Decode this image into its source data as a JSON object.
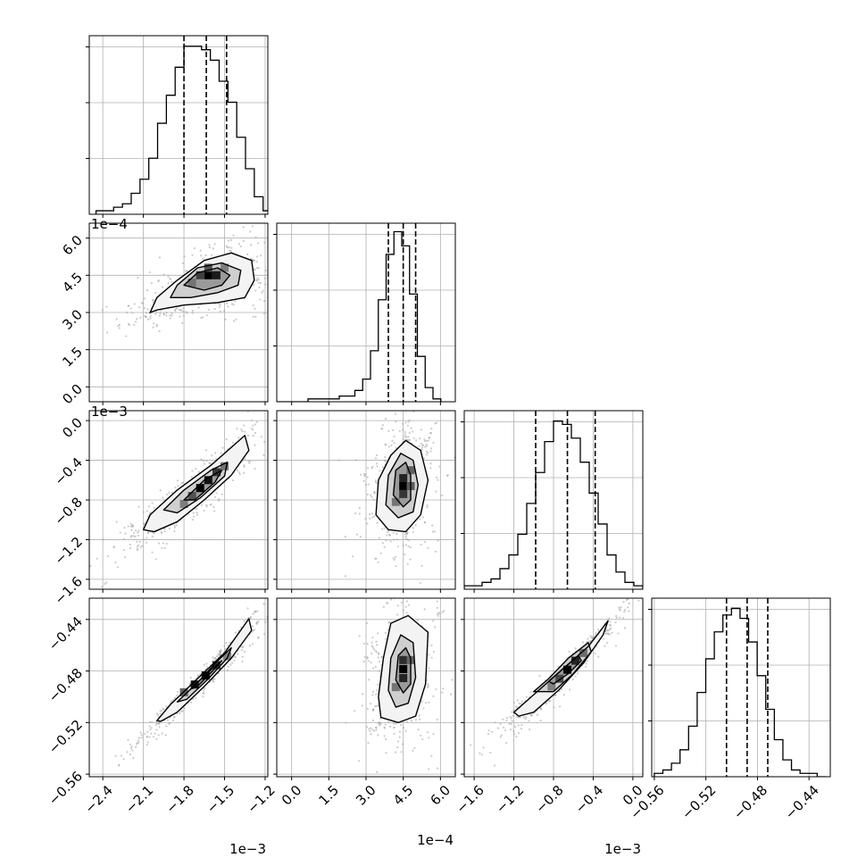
{
  "figure": {
    "type": "corner-plot",
    "background": "#ffffff",
    "ink": "#000000",
    "grid_color": "#b0b0b0",
    "point_color": "#a0a0a0"
  },
  "chart_data": {
    "type": "corner",
    "n_params": 4,
    "params": [
      {
        "range": [
          -2.5,
          -1.18
        ],
        "ticks": [
          -2.4,
          -2.1,
          -1.8,
          -1.5,
          -1.2
        ],
        "tick_labels": [
          "−2.4",
          "−2.1",
          "−1.8",
          "−1.5",
          "−1.2"
        ],
        "offset_label": "1e−3"
      },
      {
        "range": [
          -6e-05,
          0.00066
        ],
        "ticks": [
          0.0,
          0.00015,
          0.0003,
          0.00045,
          0.0006
        ],
        "tick_labels": [
          "0.0",
          "1.5",
          "3.0",
          "4.5",
          "6.0"
        ],
        "offset_label": "1e−4"
      },
      {
        "range": [
          -1.7,
          0.1
        ],
        "ticks": [
          -1.6,
          -1.2,
          -0.8,
          -0.4,
          0.0
        ],
        "tick_labels": [
          "−1.6",
          "−1.2",
          "−0.8",
          "−0.4",
          "0.0"
        ],
        "offset_label": "1e−3"
      },
      {
        "range": [
          -0.562,
          -0.4235
        ],
        "ticks": [
          -0.56,
          -0.52,
          -0.48,
          -0.44
        ],
        "tick_labels": [
          "−0.56",
          "−0.52",
          "−0.48",
          "−0.44"
        ],
        "offset_label": ""
      }
    ],
    "quantiles": [
      [
        -1.8,
        -1.635,
        -1.485
      ],
      [
        0.00039,
        0.00045,
        0.0005
      ],
      [
        -0.98,
        -0.66,
        -0.38
      ],
      [
        -0.504,
        -0.488,
        -0.472
      ]
    ],
    "histograms": [
      {
        "bin_start": -2.45,
        "bin_width": 0.065,
        "counts": [
          1,
          1,
          2,
          3,
          6,
          10,
          16,
          26,
          34,
          42,
          48,
          48,
          47,
          44,
          38,
          32,
          22,
          13,
          5,
          1
        ]
      },
      {
        "bin_start": -6e-05,
        "bin_width": 3.15e-05,
        "counts": [
          0,
          0,
          0,
          0,
          1,
          1,
          1,
          1,
          2,
          2,
          4,
          8,
          18,
          36,
          52,
          60,
          55,
          38,
          16,
          5,
          1
        ]
      },
      {
        "bin_start": -1.7,
        "bin_width": 0.09,
        "counts": [
          1,
          1,
          2,
          3,
          6,
          10,
          16,
          25,
          34,
          43,
          49,
          48,
          44,
          37,
          28,
          19,
          10,
          5,
          2,
          1
        ]
      },
      {
        "bin_start": -0.56,
        "bin_width": 0.00665,
        "counts": [
          1,
          2,
          4,
          8,
          15,
          25,
          35,
          43,
          48,
          50,
          47,
          40,
          30,
          20,
          11,
          5,
          2,
          1,
          1,
          0
        ]
      }
    ],
    "ylim": [
      [
        0,
        51
      ],
      [
        0,
        63
      ],
      [
        0,
        52
      ],
      [
        0,
        53
      ]
    ],
    "scatter_panels": [
      {
        "row": 1,
        "col": 0,
        "contours": [
          [
            [
              -2.05,
              0.0003
            ],
            [
              -2.0,
              0.00036
            ],
            [
              -1.85,
              0.00043
            ],
            [
              -1.65,
              0.00051
            ],
            [
              -1.45,
              0.00054
            ],
            [
              -1.3,
              0.00051
            ],
            [
              -1.28,
              0.00043
            ],
            [
              -1.35,
              0.00036
            ],
            [
              -1.55,
              0.00034
            ],
            [
              -1.8,
              0.00033
            ],
            [
              -2.0,
              0.00031
            ]
          ],
          [
            [
              -1.9,
              0.00036
            ],
            [
              -1.85,
              0.00041
            ],
            [
              -1.7,
              0.00048
            ],
            [
              -1.52,
              0.0005
            ],
            [
              -1.38,
              0.00047
            ],
            [
              -1.4,
              0.00041
            ],
            [
              -1.55,
              0.00038
            ],
            [
              -1.75,
              0.00036
            ]
          ],
          [
            [
              -1.8,
              0.00041
            ],
            [
              -1.7,
              0.00046
            ],
            [
              -1.55,
              0.00048
            ],
            [
              -1.46,
              0.00045
            ],
            [
              -1.52,
              0.00041
            ],
            [
              -1.65,
              0.00039
            ]
          ]
        ],
        "density_cells": [
          {
            "x": -1.62,
            "y": 0.00045,
            "level": 1.0
          },
          {
            "x": -1.56,
            "y": 0.00045,
            "level": 0.85
          },
          {
            "x": -1.68,
            "y": 0.00045,
            "level": 0.65
          },
          {
            "x": -1.62,
            "y": 0.00048,
            "level": 0.55
          },
          {
            "x": -1.74,
            "y": 0.00042,
            "level": 0.35
          },
          {
            "x": -1.5,
            "y": 0.00048,
            "level": 0.3
          }
        ]
      },
      {
        "row": 2,
        "col": 0,
        "contours": [
          [
            [
              -2.1,
              -1.1
            ],
            [
              -2.05,
              -0.95
            ],
            [
              -1.85,
              -0.7
            ],
            [
              -1.6,
              -0.45
            ],
            [
              -1.35,
              -0.15
            ],
            [
              -1.32,
              -0.3
            ],
            [
              -1.45,
              -0.55
            ],
            [
              -1.65,
              -0.8
            ],
            [
              -1.85,
              -1.02
            ],
            [
              -2.02,
              -1.12
            ]
          ],
          [
            [
              -1.95,
              -0.9
            ],
            [
              -1.8,
              -0.7
            ],
            [
              -1.6,
              -0.5
            ],
            [
              -1.48,
              -0.42
            ],
            [
              -1.5,
              -0.56
            ],
            [
              -1.68,
              -0.78
            ],
            [
              -1.85,
              -0.93
            ]
          ],
          [
            [
              -1.8,
              -0.8
            ],
            [
              -1.65,
              -0.6
            ],
            [
              -1.52,
              -0.5
            ],
            [
              -1.57,
              -0.62
            ],
            [
              -1.72,
              -0.8
            ]
          ]
        ],
        "density_cells": [
          {
            "x": -1.68,
            "y": -0.68,
            "level": 1.0
          },
          {
            "x": -1.62,
            "y": -0.6,
            "level": 0.9
          },
          {
            "x": -1.56,
            "y": -0.52,
            "level": 0.7
          },
          {
            "x": -1.74,
            "y": -0.76,
            "level": 0.55
          },
          {
            "x": -1.5,
            "y": -0.46,
            "level": 0.35
          },
          {
            "x": -1.8,
            "y": -0.84,
            "level": 0.3
          }
        ]
      },
      {
        "row": 2,
        "col": 1,
        "contours": [
          [
            [
              0.00034,
              -0.95
            ],
            [
              0.00035,
              -0.6
            ],
            [
              0.0004,
              -0.35
            ],
            [
              0.00046,
              -0.2
            ],
            [
              0.00052,
              -0.3
            ],
            [
              0.00055,
              -0.6
            ],
            [
              0.00052,
              -0.95
            ],
            [
              0.00046,
              -1.12
            ],
            [
              0.00039,
              -1.1
            ]
          ],
          [
            [
              0.00038,
              -0.85
            ],
            [
              0.00039,
              -0.55
            ],
            [
              0.00044,
              -0.33
            ],
            [
              0.00049,
              -0.4
            ],
            [
              0.00051,
              -0.65
            ],
            [
              0.00049,
              -0.92
            ],
            [
              0.00043,
              -0.98
            ]
          ],
          [
            [
              0.00041,
              -0.75
            ],
            [
              0.00042,
              -0.5
            ],
            [
              0.00046,
              -0.42
            ],
            [
              0.00048,
              -0.55
            ],
            [
              0.00048,
              -0.8
            ],
            [
              0.00045,
              -0.87
            ]
          ]
        ],
        "density_cells": [
          {
            "x": 0.00045,
            "y": -0.66,
            "level": 1.0
          },
          {
            "x": 0.00045,
            "y": -0.58,
            "level": 0.8
          },
          {
            "x": 0.00045,
            "y": -0.74,
            "level": 0.7
          },
          {
            "x": 0.00048,
            "y": -0.5,
            "level": 0.45
          },
          {
            "x": 0.00042,
            "y": -0.82,
            "level": 0.35
          },
          {
            "x": 0.00048,
            "y": -0.66,
            "level": 0.5
          }
        ]
      },
      {
        "row": 3,
        "col": 0,
        "contours": [
          [
            [
              -2.0,
              -0.5185
            ],
            [
              -1.9,
              -0.506
            ],
            [
              -1.7,
              -0.486
            ],
            [
              -1.5,
              -0.466
            ],
            [
              -1.32,
              -0.4395
            ],
            [
              -1.3,
              -0.4485
            ],
            [
              -1.45,
              -0.47
            ],
            [
              -1.65,
              -0.492
            ],
            [
              -1.85,
              -0.512
            ],
            [
              -1.97,
              -0.519
            ]
          ],
          [
            [
              -1.85,
              -0.504
            ],
            [
              -1.7,
              -0.489
            ],
            [
              -1.55,
              -0.472
            ],
            [
              -1.45,
              -0.462
            ],
            [
              -1.48,
              -0.47
            ],
            [
              -1.62,
              -0.486
            ],
            [
              -1.78,
              -0.502
            ]
          ],
          [
            [
              -1.75,
              -0.494
            ],
            [
              -1.6,
              -0.479
            ],
            [
              -1.52,
              -0.472
            ],
            [
              -1.57,
              -0.478
            ],
            [
              -1.7,
              -0.492
            ]
          ]
        ],
        "density_cells": [
          {
            "x": -1.72,
            "y": -0.4905,
            "level": 0.9
          },
          {
            "x": -1.64,
            "y": -0.4835,
            "level": 1.0
          },
          {
            "x": -1.56,
            "y": -0.4755,
            "level": 0.7
          },
          {
            "x": -1.8,
            "y": -0.4965,
            "level": 0.45
          },
          {
            "x": -1.48,
            "y": -0.4685,
            "level": 0.3
          }
        ]
      },
      {
        "row": 3,
        "col": 1,
        "contours": [
          [
            [
              0.00035,
              -0.5
            ],
            [
              0.00037,
              -0.47
            ],
            [
              0.0004,
              -0.443
            ],
            [
              0.00047,
              -0.437
            ],
            [
              0.00055,
              -0.45
            ],
            [
              0.00054,
              -0.49
            ],
            [
              0.0005,
              -0.515
            ],
            [
              0.00043,
              -0.52
            ],
            [
              0.00036,
              -0.516
            ]
          ],
          [
            [
              0.00039,
              -0.495
            ],
            [
              0.0004,
              -0.47
            ],
            [
              0.00044,
              -0.452
            ],
            [
              0.00049,
              -0.458
            ],
            [
              0.0005,
              -0.485
            ],
            [
              0.00047,
              -0.505
            ],
            [
              0.00042,
              -0.508
            ]
          ],
          [
            [
              0.00042,
              -0.487
            ],
            [
              0.00043,
              -0.468
            ],
            [
              0.00046,
              -0.462
            ],
            [
              0.00048,
              -0.47
            ],
            [
              0.00048,
              -0.49
            ],
            [
              0.00045,
              -0.497
            ]
          ]
        ],
        "density_cells": [
          {
            "x": 0.00045,
            "y": -0.4785,
            "level": 1.0
          },
          {
            "x": 0.00045,
            "y": -0.4715,
            "level": 0.75
          },
          {
            "x": 0.00045,
            "y": -0.4855,
            "level": 0.8
          },
          {
            "x": 0.00048,
            "y": -0.4715,
            "level": 0.45
          },
          {
            "x": 0.00042,
            "y": -0.4925,
            "level": 0.35
          }
        ]
      },
      {
        "row": 3,
        "col": 2,
        "contours": [
          [
            [
              -1.2,
              -0.512
            ],
            [
              -0.95,
              -0.495
            ],
            [
              -0.7,
              -0.478
            ],
            [
              -0.45,
              -0.461
            ],
            [
              -0.25,
              -0.441
            ],
            [
              -0.3,
              -0.452
            ],
            [
              -0.5,
              -0.474
            ],
            [
              -0.75,
              -0.495
            ],
            [
              -1.0,
              -0.512
            ],
            [
              -1.15,
              -0.515
            ]
          ],
          [
            [
              -1.0,
              -0.496
            ],
            [
              -0.85,
              -0.486
            ],
            [
              -0.65,
              -0.47
            ],
            [
              -0.45,
              -0.458
            ],
            [
              -0.42,
              -0.465
            ],
            [
              -0.6,
              -0.482
            ],
            [
              -0.8,
              -0.496
            ]
          ],
          [
            [
              -0.85,
              -0.488
            ],
            [
              -0.7,
              -0.478
            ],
            [
              -0.55,
              -0.468
            ],
            [
              -0.52,
              -0.472
            ],
            [
              -0.65,
              -0.482
            ],
            [
              -0.8,
              -0.49
            ]
          ]
        ],
        "density_cells": [
          {
            "x": -0.66,
            "y": -0.479,
            "level": 1.0
          },
          {
            "x": -0.58,
            "y": -0.472,
            "level": 0.8
          },
          {
            "x": -0.74,
            "y": -0.486,
            "level": 0.6
          },
          {
            "x": -0.5,
            "y": -0.466,
            "level": 0.4
          },
          {
            "x": -0.82,
            "y": -0.492,
            "level": 0.3
          }
        ]
      }
    ]
  }
}
